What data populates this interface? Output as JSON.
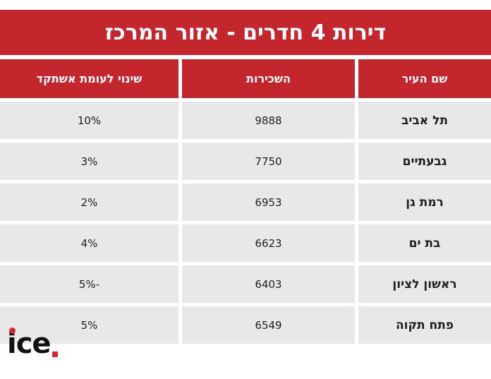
{
  "title": "דירות 4 חדרים - אזור המרכז",
  "chart_data": {
    "type": "table",
    "columns": [
      "שם העיר",
      "השכירות",
      "שינוי לעומת אשתקד"
    ],
    "rows": [
      {
        "city": "תל אביב",
        "rent": "9888",
        "change": "10%"
      },
      {
        "city": "גבעתיים",
        "rent": "7750",
        "change": "3%"
      },
      {
        "city": "רמת גן",
        "rent": "6953",
        "change": "2%"
      },
      {
        "city": "בת ים",
        "rent": "6623",
        "change": "4%"
      },
      {
        "city": "ראשון לציון",
        "rent": "6403",
        "change": "-5%"
      },
      {
        "city": "פתח תקוה",
        "rent": "6549",
        "change": "5%"
      }
    ]
  },
  "logo": {
    "text": "ice",
    "dot_color": "#d9262e"
  },
  "colors": {
    "accent": "#c4262e",
    "row_bg": "#e8e8e8"
  }
}
